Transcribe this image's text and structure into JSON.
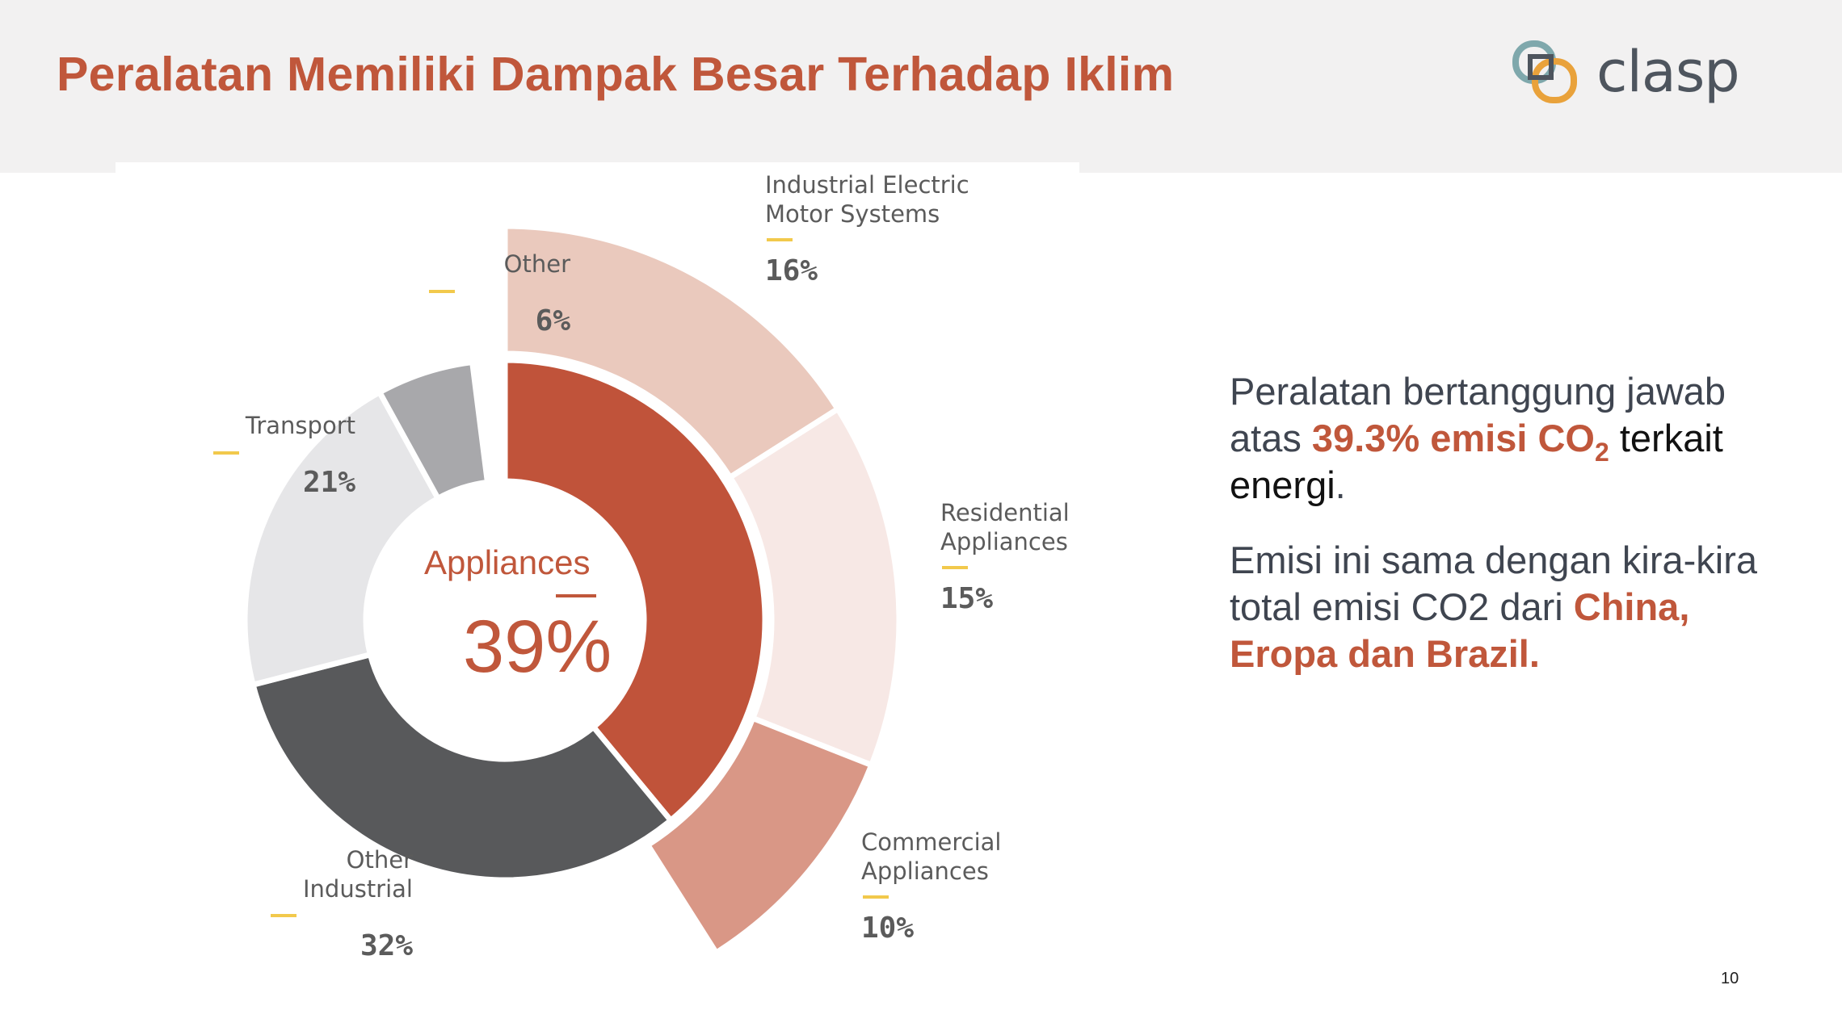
{
  "slide": {
    "title": "Peralatan Memiliki Dampak Besar Terhadap Iklim",
    "logo_text": "clasp",
    "page_number": "10",
    "colors": {
      "accent": "#c0573b",
      "highlight_dash": "#f2c94c"
    }
  },
  "side_text": {
    "p1": {
      "a": "Peralatan bertanggung jawab atas ",
      "b": "39.3% emisi CO",
      "b_sub": "2",
      "c": " terkait energi",
      "d": "."
    },
    "p2": {
      "a": "Emisi ini sama dengan kira-kira total emisi CO2 dari ",
      "b": "China, Eropa dan Brazil."
    }
  },
  "chart_data": {
    "type": "pie",
    "center": {
      "label": "Appliances",
      "value": "39%"
    },
    "inner_ring": [
      {
        "name": "Appliances",
        "value": 39,
        "color": "#c0533a"
      },
      {
        "name": "Other Industrial",
        "label_lines": [
          "Other",
          "Industrial"
        ],
        "value": 32,
        "label": "32%",
        "color": "#58595b"
      },
      {
        "name": "Transport",
        "label_lines": [
          "Transport"
        ],
        "value": 21,
        "label": "21%",
        "color": "#e6e6e8"
      },
      {
        "name": "Other",
        "label_lines": [
          "Other"
        ],
        "value": 6,
        "label": "6%",
        "color": "#a8a8ab"
      }
    ],
    "outer_ring": [
      {
        "name": "Industrial Electric Motor Systems",
        "label_lines": [
          "Industrial Electric",
          "Motor Systems"
        ],
        "value": 16,
        "label": "16%",
        "color": "#eac9bd"
      },
      {
        "name": "Residential Appliances",
        "label_lines": [
          "Residential",
          "Appliances"
        ],
        "value": 15,
        "label": "15%",
        "color": "#f7e8e5"
      },
      {
        "name": "Commercial Appliances",
        "label_lines": [
          "Commercial",
          "Appliances"
        ],
        "value": 10,
        "label": "10%",
        "color": "#d99786"
      }
    ]
  }
}
